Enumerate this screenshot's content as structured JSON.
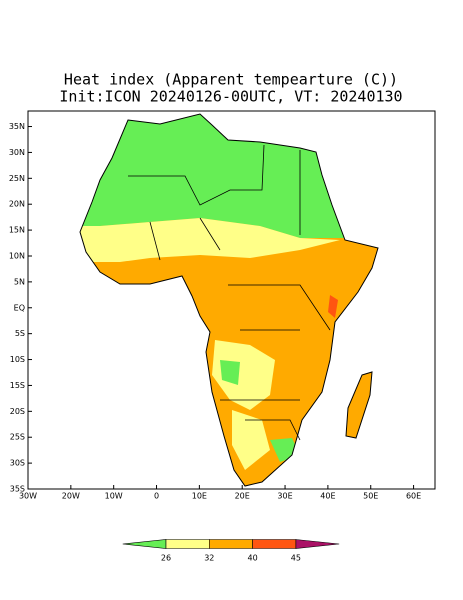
{
  "chart_data": {
    "type": "map",
    "title": "Heat index (Apparent tempearture (C))",
    "subtitle": "Init:ICON 20240126-00UTC, VT: 20240130",
    "xlim": [
      -30,
      65
    ],
    "ylim": [
      -35,
      38
    ],
    "xticks": [
      {
        "value": -30,
        "label": "30W"
      },
      {
        "value": -20,
        "label": "20W"
      },
      {
        "value": -10,
        "label": "10W"
      },
      0,
      {
        "value": 10,
        "label": "10E"
      },
      {
        "value": 20,
        "label": "20E"
      },
      {
        "value": 30,
        "label": "30E"
      },
      {
        "value": 40,
        "label": "40E"
      },
      {
        "value": 50,
        "label": "50E"
      },
      {
        "value": 60,
        "label": "60E"
      }
    ],
    "yticks": [
      {
        "value": 35,
        "label": "35N"
      },
      {
        "value": 30,
        "label": "30N"
      },
      {
        "value": 25,
        "label": "25N"
      },
      {
        "value": 20,
        "label": "20N"
      },
      {
        "value": 15,
        "label": "15N"
      },
      {
        "value": 10,
        "label": "10N"
      },
      {
        "value": 5,
        "label": "5N"
      },
      {
        "value": 0,
        "label": "EQ"
      },
      {
        "value": -5,
        "label": "5S"
      },
      {
        "value": -10,
        "label": "10S"
      },
      {
        "value": -15,
        "label": "15S"
      },
      {
        "value": -20,
        "label": "20S"
      },
      {
        "value": -25,
        "label": "25S"
      },
      {
        "value": -30,
        "label": "30S"
      },
      {
        "value": -35,
        "label": "35S"
      }
    ],
    "colorbar": {
      "ticks": [
        26,
        32,
        40,
        45
      ],
      "colors": [
        "#66ee55",
        "#ffff88",
        "#ffaa00",
        "#ff5511",
        "#aa1166"
      ]
    }
  }
}
